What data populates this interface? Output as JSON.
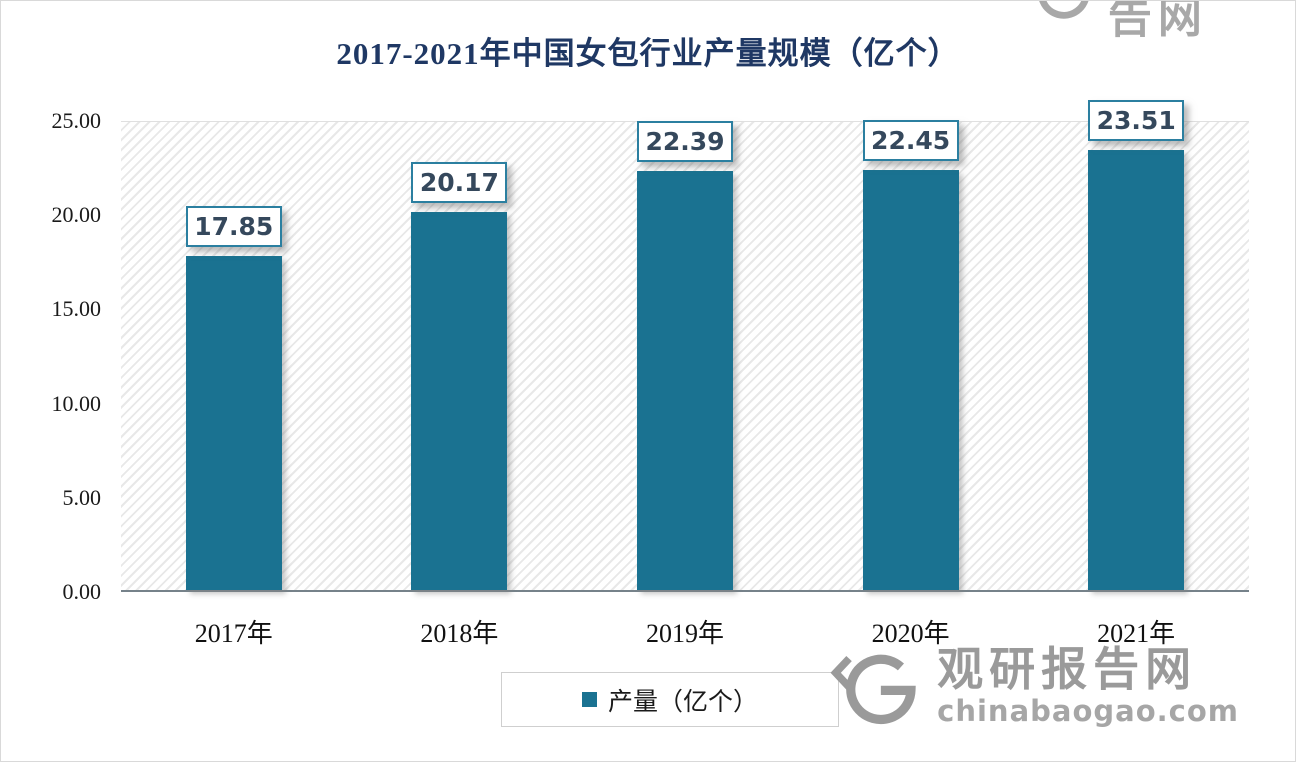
{
  "title": "2017-2021年中国女包行业产量规模（亿个）",
  "chart_data": {
    "type": "bar",
    "categories": [
      "2017年",
      "2018年",
      "2019年",
      "2020年",
      "2021年"
    ],
    "values": [
      17.85,
      20.17,
      22.39,
      22.45,
      23.51
    ],
    "title": "2017-2021年中国女包行业产量规模（亿个）",
    "xlabel": "",
    "ylabel": "",
    "ylim": [
      0,
      25
    ],
    "yticks": [
      "0.00",
      "5.00",
      "10.00",
      "15.00",
      "20.00",
      "25.00"
    ],
    "ytick_values": [
      0,
      5,
      10,
      15,
      20,
      25
    ],
    "legend": [
      "产量（亿个）"
    ],
    "legend_position": "bottom",
    "grid": false,
    "plot_background": "diagonal-hatch"
  },
  "legend": {
    "label": "产量（亿个）"
  },
  "watermark": {
    "name": "观研报告网",
    "domain": "chinabaogao.com"
  },
  "colors": {
    "bar": "#1a7291",
    "title": "#1f3864",
    "value_label_text": "#35485c",
    "value_label_border": "#2b7fa0",
    "watermark": "#9a9a9a"
  }
}
